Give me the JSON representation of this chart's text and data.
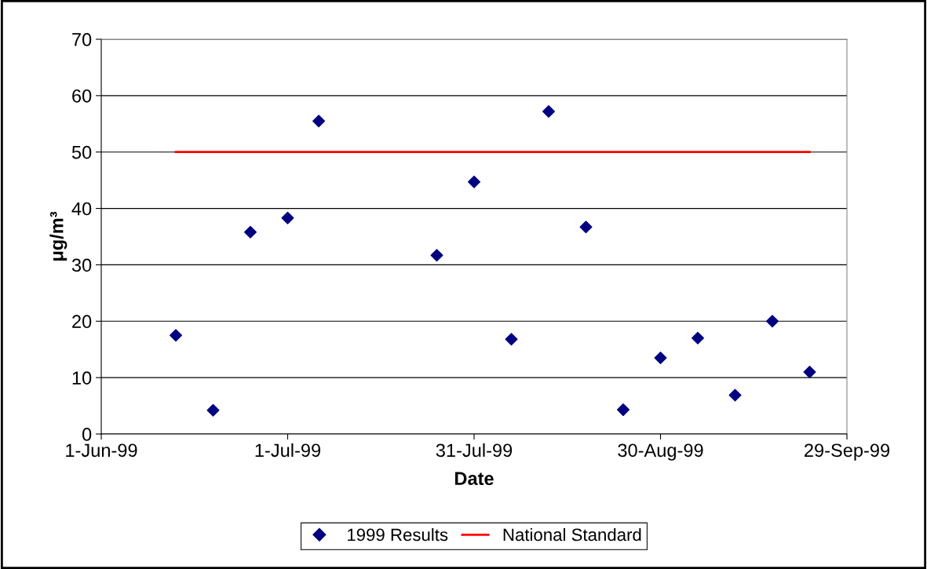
{
  "chart_data": {
    "type": "scatter",
    "xlabel": "Date",
    "ylabel": "μg/m³",
    "xlim": [
      "1999-06-01",
      "1999-09-29"
    ],
    "ylim": [
      0,
      70
    ],
    "yticks": [
      0,
      10,
      20,
      30,
      40,
      50,
      60,
      70
    ],
    "xticks": [
      {
        "value": "1999-06-01",
        "label": "1-Jun-99"
      },
      {
        "value": "1999-07-01",
        "label": "1-Jul-99"
      },
      {
        "value": "1999-07-31",
        "label": "31-Jul-99"
      },
      {
        "value": "1999-08-30",
        "label": "30-Aug-99"
      },
      {
        "value": "1999-09-29",
        "label": "29-Sep-99"
      }
    ],
    "grid": "y",
    "legend": "bottom",
    "series": [
      {
        "name": "1999 Results",
        "color": "#000080",
        "marker": "diamond",
        "x": [
          "1999-06-13",
          "1999-06-19",
          "1999-06-25",
          "1999-07-01",
          "1999-07-06",
          "1999-07-25",
          "1999-07-31",
          "1999-08-06",
          "1999-08-12",
          "1999-08-18",
          "1999-08-24",
          "1999-08-30",
          "1999-09-05",
          "1999-09-11",
          "1999-09-17",
          "1999-09-23"
        ],
        "values": [
          17.5,
          4.2,
          35.8,
          38.3,
          55.5,
          31.7,
          44.7,
          16.8,
          57.2,
          36.7,
          4.3,
          13.5,
          17.0,
          6.9,
          20.0,
          11.0
        ]
      },
      {
        "name": "National Standard",
        "type": "line",
        "color": "#ff0000",
        "line_style": "solid",
        "marker": "none",
        "x": [
          "1999-06-13",
          "1999-09-23"
        ],
        "values": [
          50,
          50
        ]
      }
    ]
  }
}
